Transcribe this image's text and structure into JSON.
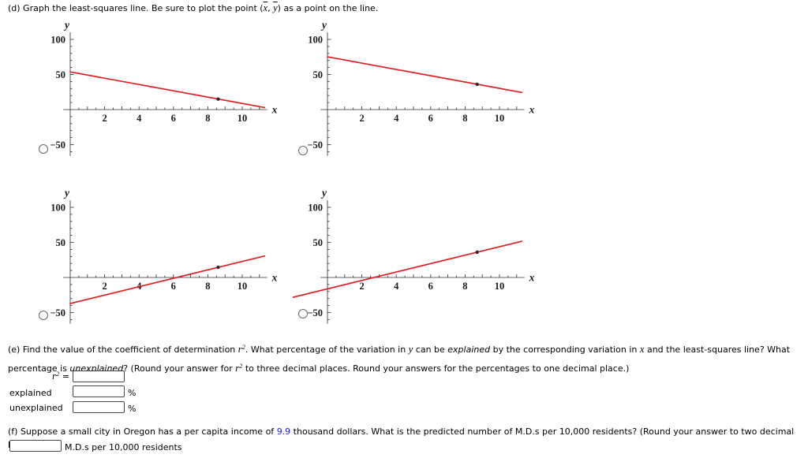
{
  "part_d": {
    "label_prefix": "(d) Graph the least-squares line. Be sure to plot the point (",
    "xbar": "x",
    "separator": ", ",
    "ybar": "y",
    "label_suffix": ") as a point on the line."
  },
  "chart_data": [
    {
      "type": "line",
      "position": "top-left",
      "xlabel": "x",
      "ylabel": "y",
      "xlim": [
        -0.4,
        11.45
      ],
      "ylim": [
        -66,
        110
      ],
      "x_tick_labels": [
        2,
        4,
        6,
        8,
        10
      ],
      "y_tick_labels": [
        100,
        50,
        -50
      ],
      "x_minor_tick_step": 0.5,
      "y_minor_tick_step": 10,
      "line": {
        "x_start": 0,
        "y_start": 53.7,
        "x_end": 11.3,
        "y_end": 2.9,
        "slope": -4.5,
        "intercept": 53.7
      },
      "mean_point": {
        "x": 8.6,
        "y": 15
      }
    },
    {
      "type": "line",
      "position": "top-right",
      "xlabel": "x",
      "ylabel": "y",
      "xlim": [
        -0.4,
        11.45
      ],
      "ylim": [
        -66,
        110
      ],
      "x_tick_labels": [
        2,
        4,
        6,
        8,
        10
      ],
      "y_tick_labels": [
        100,
        50,
        -50
      ],
      "x_minor_tick_step": 0.5,
      "y_minor_tick_step": 10,
      "line": {
        "x_start": 0,
        "y_start": 75.2,
        "x_end": 11.3,
        "y_end": 24.4,
        "slope": -4.5,
        "intercept": 75.2
      },
      "mean_point": {
        "x": 8.7,
        "y": 36
      }
    },
    {
      "type": "line",
      "position": "bottom-left",
      "xlabel": "x",
      "ylabel": "y",
      "xlim": [
        -0.4,
        11.45
      ],
      "ylim": [
        -66,
        110
      ],
      "x_tick_labels": [
        2,
        4,
        6,
        8,
        10
      ],
      "y_tick_labels": [
        100,
        50,
        -50
      ],
      "x_minor_tick_step": 0.5,
      "y_minor_tick_step": 10,
      "line": {
        "x_start": 0,
        "y_start": -37.1,
        "x_end": 11.3,
        "y_end": 30.7,
        "slope": 6.0,
        "intercept": -37.1
      },
      "mean_point": {
        "x": 8.6,
        "y": 14.5
      }
    },
    {
      "type": "line",
      "position": "bottom-right",
      "xlabel": "x",
      "ylabel": "y",
      "xlim": [
        -0.4,
        11.45
      ],
      "ylim": [
        -66,
        110
      ],
      "x_tick_labels": [
        2,
        4,
        6,
        8,
        10
      ],
      "y_tick_labels": [
        100,
        50,
        -50
      ],
      "x_minor_tick_step": 0.5,
      "y_minor_tick_step": 10,
      "line": {
        "x_start": -2,
        "y_start": -28.2,
        "x_end": 11.3,
        "y_end": 51.6,
        "slope": 6.0,
        "intercept": -16.2
      },
      "mean_point": {
        "x": 8.7,
        "y": 36
      }
    }
  ],
  "part_e": {
    "seg1": "(e) Find the value of the coefficient of determination ",
    "r_var": "r",
    "r_sup": "2",
    "seg2": ". What percentage of the variation in ",
    "y_var": "y",
    "seg3": " can be ",
    "explained_word": "explained",
    "seg4": " by the corresponding variation in ",
    "x_var": "x",
    "seg5": " and the least-squares line? What percentage is ",
    "unexplained_word": "unexplained",
    "seg6": "? (Round your answer for ",
    "seg7": " to three decimal places. Round your answers for the percentages to one decimal place.)",
    "r2_eq": " = ",
    "rows": {
      "r2_value": "",
      "explained_label": "explained",
      "explained_value": "",
      "explained_unit": "%",
      "unexplained_label": "unexplained",
      "unexplained_value": "",
      "unexplained_unit": "%"
    }
  },
  "part_f": {
    "seg1": "(f) Suppose a small city in Oregon has a per capita income of ",
    "income_value": "9.9",
    "seg2": " thousand dollars. What is the predicted number of M.D.s per 10,000 residents? (Round your answer to two decimal places.)",
    "answer_value": "",
    "answer_unit_label": "M.D.s per 10,000 residents"
  },
  "colors": {
    "regression_line": "#e01f1f",
    "mean_point": "#2b2b2b",
    "axis": "#2a2a2a",
    "income_highlight": "#2222cc"
  }
}
